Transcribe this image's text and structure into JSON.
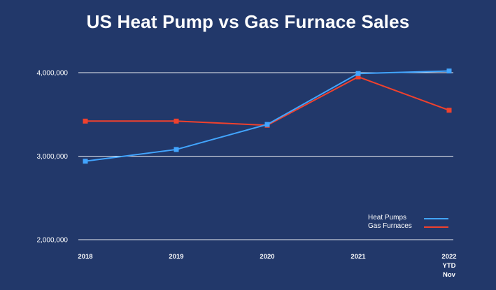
{
  "chart_data": {
    "type": "line",
    "title": "US Heat Pump vs Gas Furnace Sales",
    "xlabel": "",
    "ylabel": "",
    "categories": [
      [
        "2018"
      ],
      [
        "2019"
      ],
      [
        "2020"
      ],
      [
        "2021"
      ],
      [
        "2022",
        "YTD",
        "Nov"
      ]
    ],
    "yticks": [
      {
        "value": 2000000,
        "label": "2,000,000"
      },
      {
        "value": 3000000,
        "label": "3,000,000"
      },
      {
        "value": 4000000,
        "label": "4,000,000"
      }
    ],
    "ylim": [
      2000000,
      4000000
    ],
    "grid": true,
    "legend_position": "bottom-right",
    "series": [
      {
        "name": "Heat Pumps",
        "color": "#42a5ff",
        "values": [
          2940000,
          3080000,
          3380000,
          3990000,
          4020000
        ]
      },
      {
        "name": "Gas Furnaces",
        "color": "#f0412d",
        "values": [
          3420000,
          3420000,
          3370000,
          3950000,
          3550000
        ]
      }
    ]
  }
}
